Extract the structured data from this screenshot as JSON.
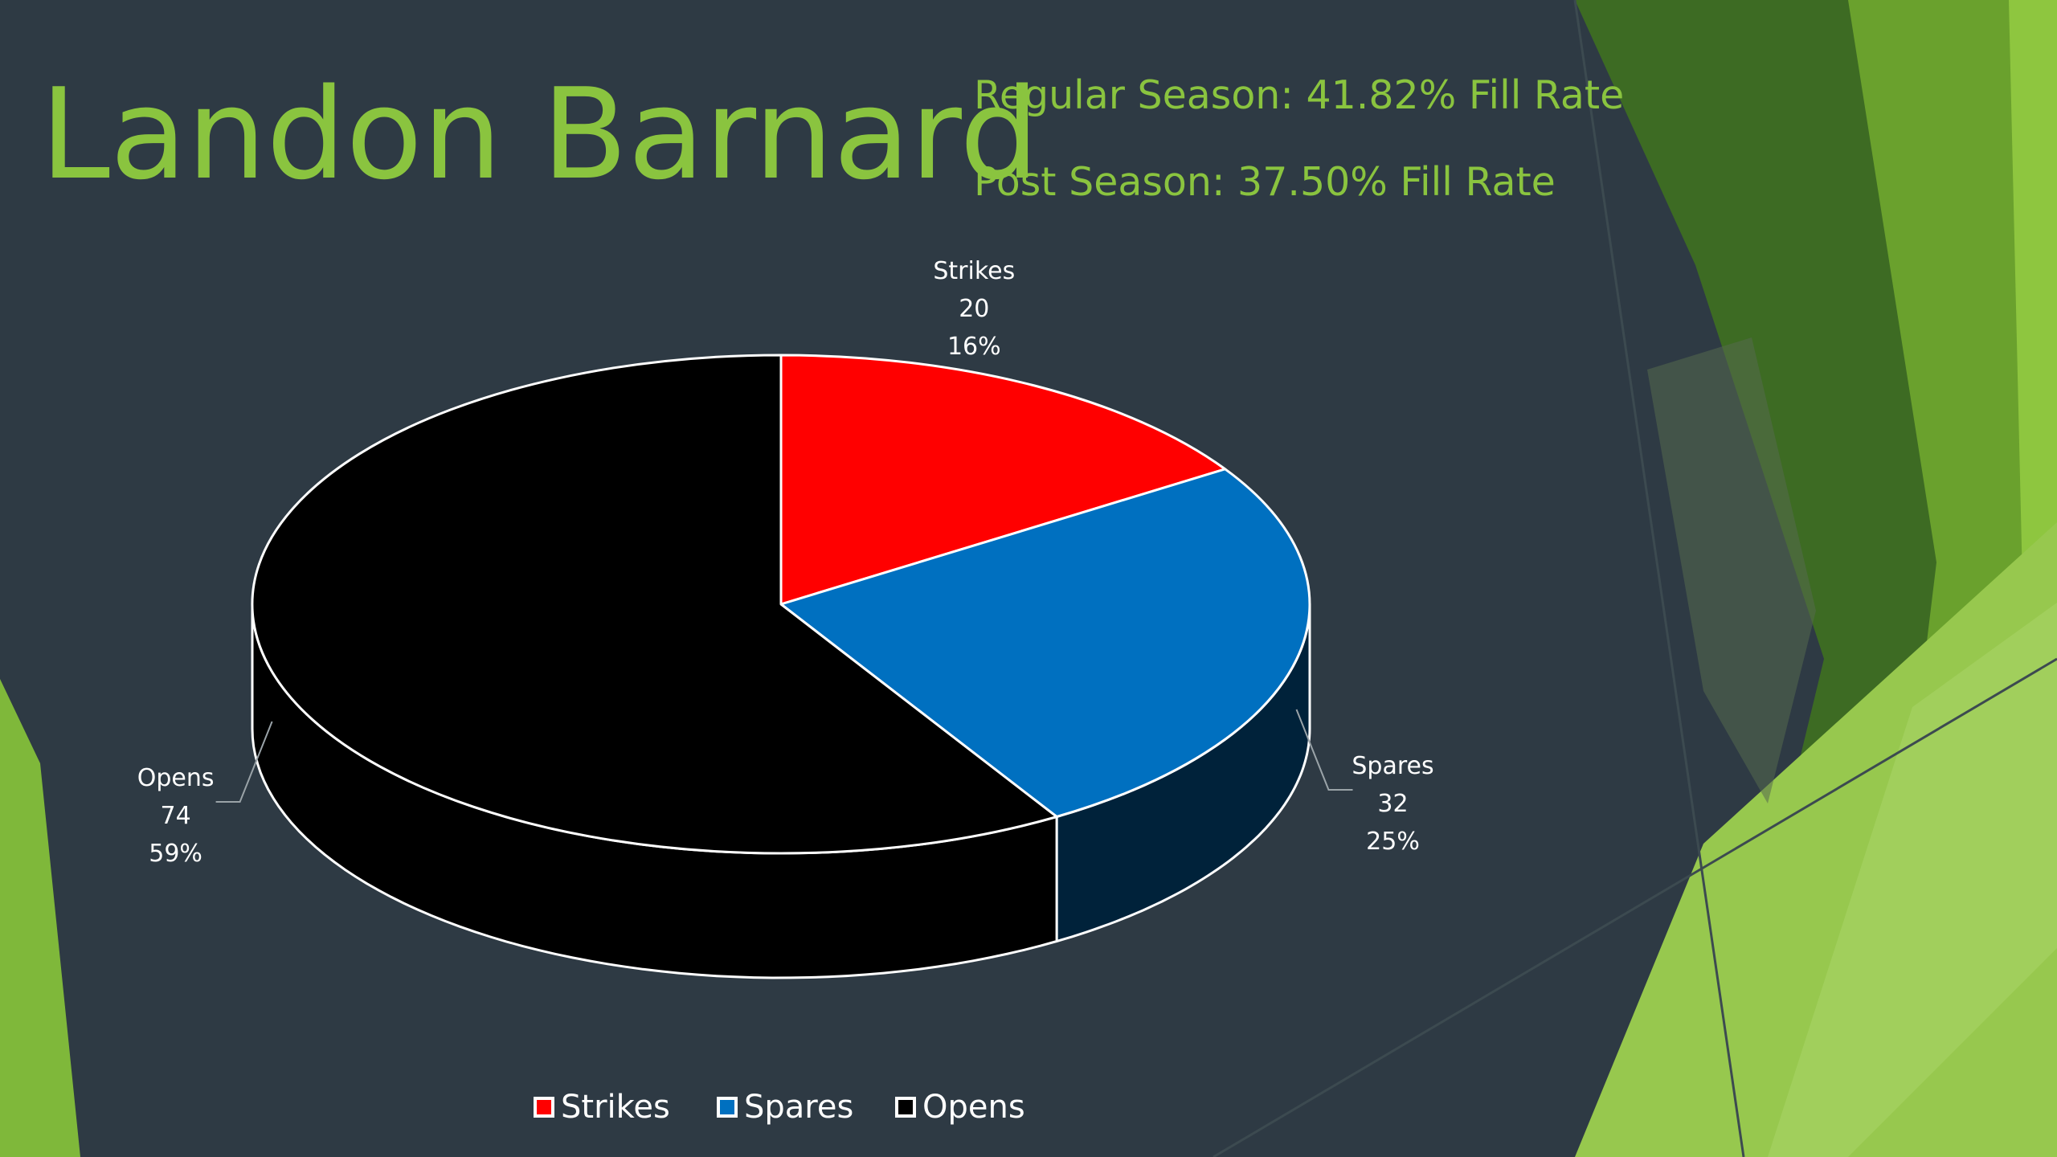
{
  "slide": {
    "title": "Landon Barnard",
    "regular_season": "Regular Season: 41.82% Fill Rate",
    "post_season": "Post Season: 37.50% Fill Rate"
  },
  "colors": {
    "background": "#2e3a44",
    "title_green": "#8ac43f",
    "strikes": "#ff0000",
    "spares": "#0070c0",
    "opens": "#000000"
  },
  "chart_data": {
    "type": "pie",
    "title": "",
    "style": "3d",
    "categories": [
      "Strikes",
      "Spares",
      "Opens"
    ],
    "values": [
      20,
      32,
      74
    ],
    "percent_labels": [
      "16%",
      "25%",
      "59%"
    ],
    "value_labels": [
      "20",
      "32",
      "74"
    ],
    "colors": [
      "#ff0000",
      "#0070c0",
      "#000000"
    ],
    "legend_position": "bottom"
  }
}
